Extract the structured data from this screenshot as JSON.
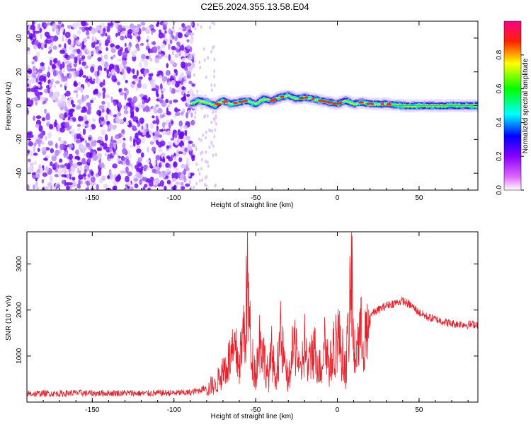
{
  "title": "C2E5.2024.355.13.58.E04",
  "chart_data": [
    {
      "type": "heatmap",
      "xlabel": "Height of straight line (km)",
      "ylabel": "Frequency (Hz)",
      "xlim": [
        -190,
        86
      ],
      "ylim": [
        -50,
        50
      ],
      "x_ticks": [
        -150,
        -100,
        -50,
        0,
        50
      ],
      "y_ticks": [
        -40,
        -20,
        0,
        20,
        40
      ],
      "colorbar": {
        "label": "Normalized spectral amplitude",
        "range": [
          0,
          1
        ],
        "ticks": [
          "0.0",
          "0.2",
          "0.4",
          "0.6",
          "0.8"
        ],
        "colors": [
          "#ffffff",
          "#cc00ff",
          "#0000ff",
          "#00ffff",
          "#00ff00",
          "#ffff00",
          "#ff0000",
          "#ff0088"
        ]
      },
      "noise_region": {
        "x_range": [
          -190,
          -88
        ],
        "f_range": [
          -50,
          50
        ]
      },
      "ridge": {
        "x": [
          -90,
          -85,
          -80,
          -75,
          -70,
          -65,
          -60,
          -55,
          -50,
          -45,
          -40,
          -35,
          -30,
          -25,
          -20,
          -15,
          -10,
          -5,
          0,
          5,
          10,
          15,
          20,
          30,
          40,
          50,
          60,
          70,
          86
        ],
        "f": [
          1,
          3,
          2,
          0,
          3,
          1,
          2,
          3,
          1,
          4,
          3,
          5,
          6,
          4,
          5,
          4,
          3,
          2,
          1,
          3,
          1,
          2,
          1,
          1,
          0,
          0,
          0,
          0,
          0
        ]
      }
    },
    {
      "type": "line",
      "xlabel": "Height of straight line (km)",
      "ylabel": "SNR (10 * v/v)",
      "xlim": [
        -190,
        86
      ],
      "ylim": [
        0,
        3700
      ],
      "x_ticks": [
        -150,
        -100,
        -50,
        0,
        50
      ],
      "y_ticks": [
        1000,
        2000,
        3000
      ],
      "color": "#e8202a",
      "series": [
        {
          "x": [
            -190,
            -180,
            -170,
            -160,
            -150,
            -140,
            -130,
            -120,
            -110,
            -100,
            -90,
            -85,
            -80,
            -77,
            -75,
            -70,
            -65,
            -62,
            -60,
            -58,
            -56,
            -55,
            -53,
            -50,
            -47,
            -45,
            -42,
            -40,
            -38,
            -35,
            -32,
            -30,
            -27,
            -25,
            -23,
            -20,
            -18,
            -15,
            -12,
            -10,
            -8,
            -5,
            -3,
            0,
            3,
            5,
            7,
            9,
            10,
            12,
            15,
            18,
            20,
            25,
            30,
            35,
            40,
            45,
            50,
            55,
            60,
            65,
            70,
            75,
            80,
            86
          ],
          "y": [
            180,
            190,
            185,
            200,
            190,
            195,
            200,
            190,
            195,
            200,
            205,
            250,
            320,
            500,
            450,
            900,
            1300,
            1400,
            1100,
            1800,
            2500,
            3500,
            1500,
            800,
            2000,
            1300,
            700,
            1500,
            600,
            1900,
            1000,
            600,
            1500,
            1800,
            700,
            1700,
            900,
            1600,
            1200,
            900,
            1900,
            1000,
            1300,
            2000,
            1400,
            900,
            2200,
            3700,
            1200,
            1700,
            2000,
            1800,
            1900,
            2000,
            2100,
            2150,
            2200,
            2100,
            1950,
            1850,
            1800,
            1750,
            1700,
            1700,
            1680,
            1700
          ]
        }
      ]
    }
  ]
}
